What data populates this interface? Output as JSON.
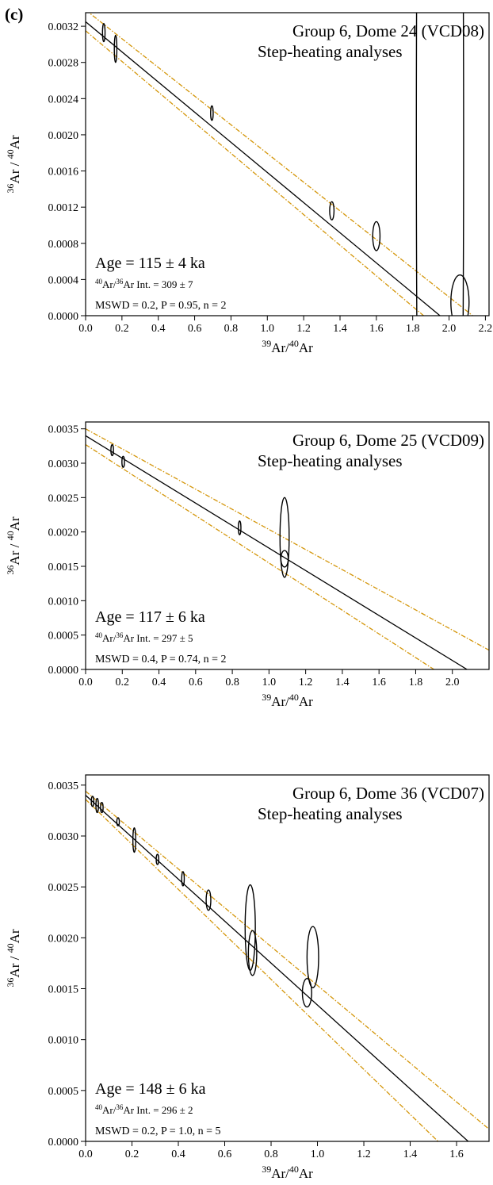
{
  "panel_letter": "(c)",
  "colors": {
    "axis": "#000000",
    "regression": "#000000",
    "envelope": "#D4960A",
    "ellipse": "#000000"
  },
  "chart_data": [
    {
      "type": "scatter",
      "title": "Group 6, Dome 24 (VCD08)",
      "subtitle": "Step-heating analyses",
      "xlabel": {
        "sup1": "39",
        "base1": "Ar/",
        "sup2": "40",
        "base2": "Ar"
      },
      "ylabel": {
        "sup1": "36",
        "base1": "Ar / ",
        "sup2": "40",
        "base2": "Ar"
      },
      "xlim": [
        0,
        2.22
      ],
      "ylim": [
        0,
        0.00335
      ],
      "xticks": [
        0.0,
        0.2,
        0.4,
        0.6,
        0.8,
        1.0,
        1.2,
        1.4,
        1.6,
        1.8,
        2.0,
        2.2
      ],
      "xtick_labels": [
        "0.0",
        "0.2",
        "0.4",
        "0.6",
        "0.8",
        "1.0",
        "1.2",
        "1.4",
        "1.6",
        "1.8",
        "2.0",
        "2.2"
      ],
      "yticks": [
        0,
        0.0004,
        0.0008,
        0.0012,
        0.0016,
        0.002,
        0.0024,
        0.0028,
        0.0032
      ],
      "ytick_labels": [
        "0.0000",
        "0.0004",
        "0.0008",
        "0.0012",
        "0.0016",
        "0.0020",
        "0.0024",
        "0.0028",
        "0.0032"
      ],
      "annotations": {
        "age": "Age = 115 ± 4 ka",
        "intercept": {
          "sup1": "40",
          "base1": "Ar/",
          "sup2": "36",
          "base2": "Ar Int. =  309 ± 7"
        },
        "stats": "MSWD = 0.2, P = 0.95, n = 2"
      },
      "regression": {
        "y_intercept": 0.00325,
        "x_intercept": 1.95
      },
      "envelope_upper": [
        [
          0.0,
          0.00338
        ],
        [
          2.13,
          0.0
        ]
      ],
      "envelope_lower": [
        [
          0.0,
          0.00315
        ],
        [
          1.86,
          0.0
        ]
      ],
      "ellipses": [
        {
          "x": 0.1,
          "y": 0.00313,
          "dx": 0.005,
          "dy": 0.0001
        },
        {
          "x": 0.165,
          "y": 0.00295,
          "dx": 0.006,
          "dy": 0.00015
        },
        {
          "x": 0.695,
          "y": 0.00224,
          "dx": 0.005,
          "dy": 8e-05
        },
        {
          "x": 1.355,
          "y": 0.00116,
          "dx": 0.012,
          "dy": 0.0001
        },
        {
          "x": 1.6,
          "y": 0.00088,
          "dx": 0.02,
          "dy": 0.00016
        },
        {
          "x": 2.06,
          "y": 0.00015,
          "dx": 0.05,
          "dy": 0.0003
        },
        {
          "x": 1.95,
          "y": 0.00195,
          "dx": 0.13,
          "dy": 0.0095
        }
      ]
    },
    {
      "type": "scatter",
      "title": "Group 6, Dome 25 (VCD09)",
      "subtitle": "Step-heating analyses",
      "xlabel": {
        "sup1": "39",
        "base1": "Ar/",
        "sup2": "40",
        "base2": "Ar"
      },
      "ylabel": {
        "sup1": "36",
        "base1": "Ar / ",
        "sup2": "40",
        "base2": "Ar"
      },
      "xlim": [
        0,
        2.2
      ],
      "ylim": [
        0,
        0.0036
      ],
      "xticks": [
        0.0,
        0.2,
        0.4,
        0.6,
        0.8,
        1.0,
        1.2,
        1.4,
        1.6,
        1.8,
        2.0
      ],
      "xtick_labels": [
        "0.0",
        "0.2",
        "0.4",
        "0.6",
        "0.8",
        "1.0",
        "1.2",
        "1.4",
        "1.6",
        "1.8",
        "2.0"
      ],
      "yticks": [
        0,
        0.0005,
        0.001,
        0.0015,
        0.002,
        0.0025,
        0.003,
        0.0035
      ],
      "ytick_labels": [
        "0.0000",
        "0.0005",
        "0.0010",
        "0.0015",
        "0.0020",
        "0.0025",
        "0.0030",
        "0.0035"
      ],
      "annotations": {
        "age": "Age = 117 ± 6 ka",
        "intercept": {
          "sup1": "40",
          "base1": "Ar/",
          "sup2": "36",
          "base2": "Ar Int. =  297 ± 5"
        },
        "stats": "MSWD = 0.4, P = 0.74, n = 2"
      },
      "regression": {
        "y_intercept": 0.0034,
        "x_intercept": 2.08
      },
      "envelope_upper": [
        [
          0.0,
          0.0035
        ],
        [
          2.2,
          0.00028
        ]
      ],
      "envelope_lower": [
        [
          0.0,
          0.00327
        ],
        [
          1.9,
          0.0
        ]
      ],
      "ellipses": [
        {
          "x": 0.145,
          "y": 0.00319,
          "dx": 0.006,
          "dy": 8e-05
        },
        {
          "x": 0.205,
          "y": 0.00302,
          "dx": 0.006,
          "dy": 8e-05
        },
        {
          "x": 0.84,
          "y": 0.00206,
          "dx": 0.007,
          "dy": 0.0001
        },
        {
          "x": 1.085,
          "y": 0.00161,
          "dx": 0.02,
          "dy": 0.00012
        },
        {
          "x": 1.085,
          "y": 0.00192,
          "dx": 0.025,
          "dy": 0.00058
        }
      ]
    },
    {
      "type": "scatter",
      "title": "Group 6, Dome 36 (VCD07)",
      "subtitle": "Step-heating analyses",
      "xlabel": {
        "sup1": "39",
        "base1": "Ar/",
        "sup2": "40",
        "base2": "Ar"
      },
      "ylabel": {
        "sup1": "36",
        "base1": "Ar / ",
        "sup2": "40",
        "base2": "Ar"
      },
      "xlim": [
        0,
        1.74
      ],
      "ylim": [
        0,
        0.0036
      ],
      "xticks": [
        0.0,
        0.2,
        0.4,
        0.6,
        0.8,
        1.0,
        1.2,
        1.4,
        1.6
      ],
      "xtick_labels": [
        "0.0",
        "0.2",
        "0.4",
        "0.6",
        "0.8",
        "1.0",
        "1.2",
        "1.4",
        "1.6"
      ],
      "yticks": [
        0,
        0.0005,
        0.001,
        0.0015,
        0.002,
        0.0025,
        0.003,
        0.0035
      ],
      "ytick_labels": [
        "0.0000",
        "0.0005",
        "0.0010",
        "0.0015",
        "0.0020",
        "0.0025",
        "0.0030",
        "0.0035"
      ],
      "annotations": {
        "age": "Age = 148 ± 6 ka",
        "intercept": {
          "sup1": "40",
          "base1": "Ar/",
          "sup2": "36",
          "base2": "Ar Int. =  296 ± 2"
        },
        "stats": "MSWD = 0.2, P = 1.0, n = 5"
      },
      "regression": {
        "y_intercept": 0.0034,
        "x_intercept": 1.65
      },
      "envelope_upper": [
        [
          0.0,
          0.00344
        ],
        [
          1.74,
          0.00012
        ]
      ],
      "envelope_lower": [
        [
          0.0,
          0.00336
        ],
        [
          1.52,
          0.0
        ]
      ],
      "ellipses": [
        {
          "x": 0.03,
          "y": 0.00334,
          "dx": 0.004,
          "dy": 5e-05
        },
        {
          "x": 0.05,
          "y": 0.0033,
          "dx": 0.004,
          "dy": 7e-05
        },
        {
          "x": 0.07,
          "y": 0.00328,
          "dx": 0.004,
          "dy": 5e-05
        },
        {
          "x": 0.14,
          "y": 0.00314,
          "dx": 0.004,
          "dy": 4e-05
        },
        {
          "x": 0.21,
          "y": 0.00296,
          "dx": 0.006,
          "dy": 0.00012
        },
        {
          "x": 0.31,
          "y": 0.00277,
          "dx": 0.004,
          "dy": 5e-05
        },
        {
          "x": 0.42,
          "y": 0.00258,
          "dx": 0.005,
          "dy": 7e-05
        },
        {
          "x": 0.53,
          "y": 0.00237,
          "dx": 0.01,
          "dy": 0.0001
        },
        {
          "x": 0.71,
          "y": 0.0021,
          "dx": 0.022,
          "dy": 0.00042
        },
        {
          "x": 0.72,
          "y": 0.00185,
          "dx": 0.018,
          "dy": 0.00022
        },
        {
          "x": 0.955,
          "y": 0.00146,
          "dx": 0.02,
          "dy": 0.00014
        },
        {
          "x": 0.98,
          "y": 0.00181,
          "dx": 0.025,
          "dy": 0.0003
        }
      ]
    }
  ]
}
